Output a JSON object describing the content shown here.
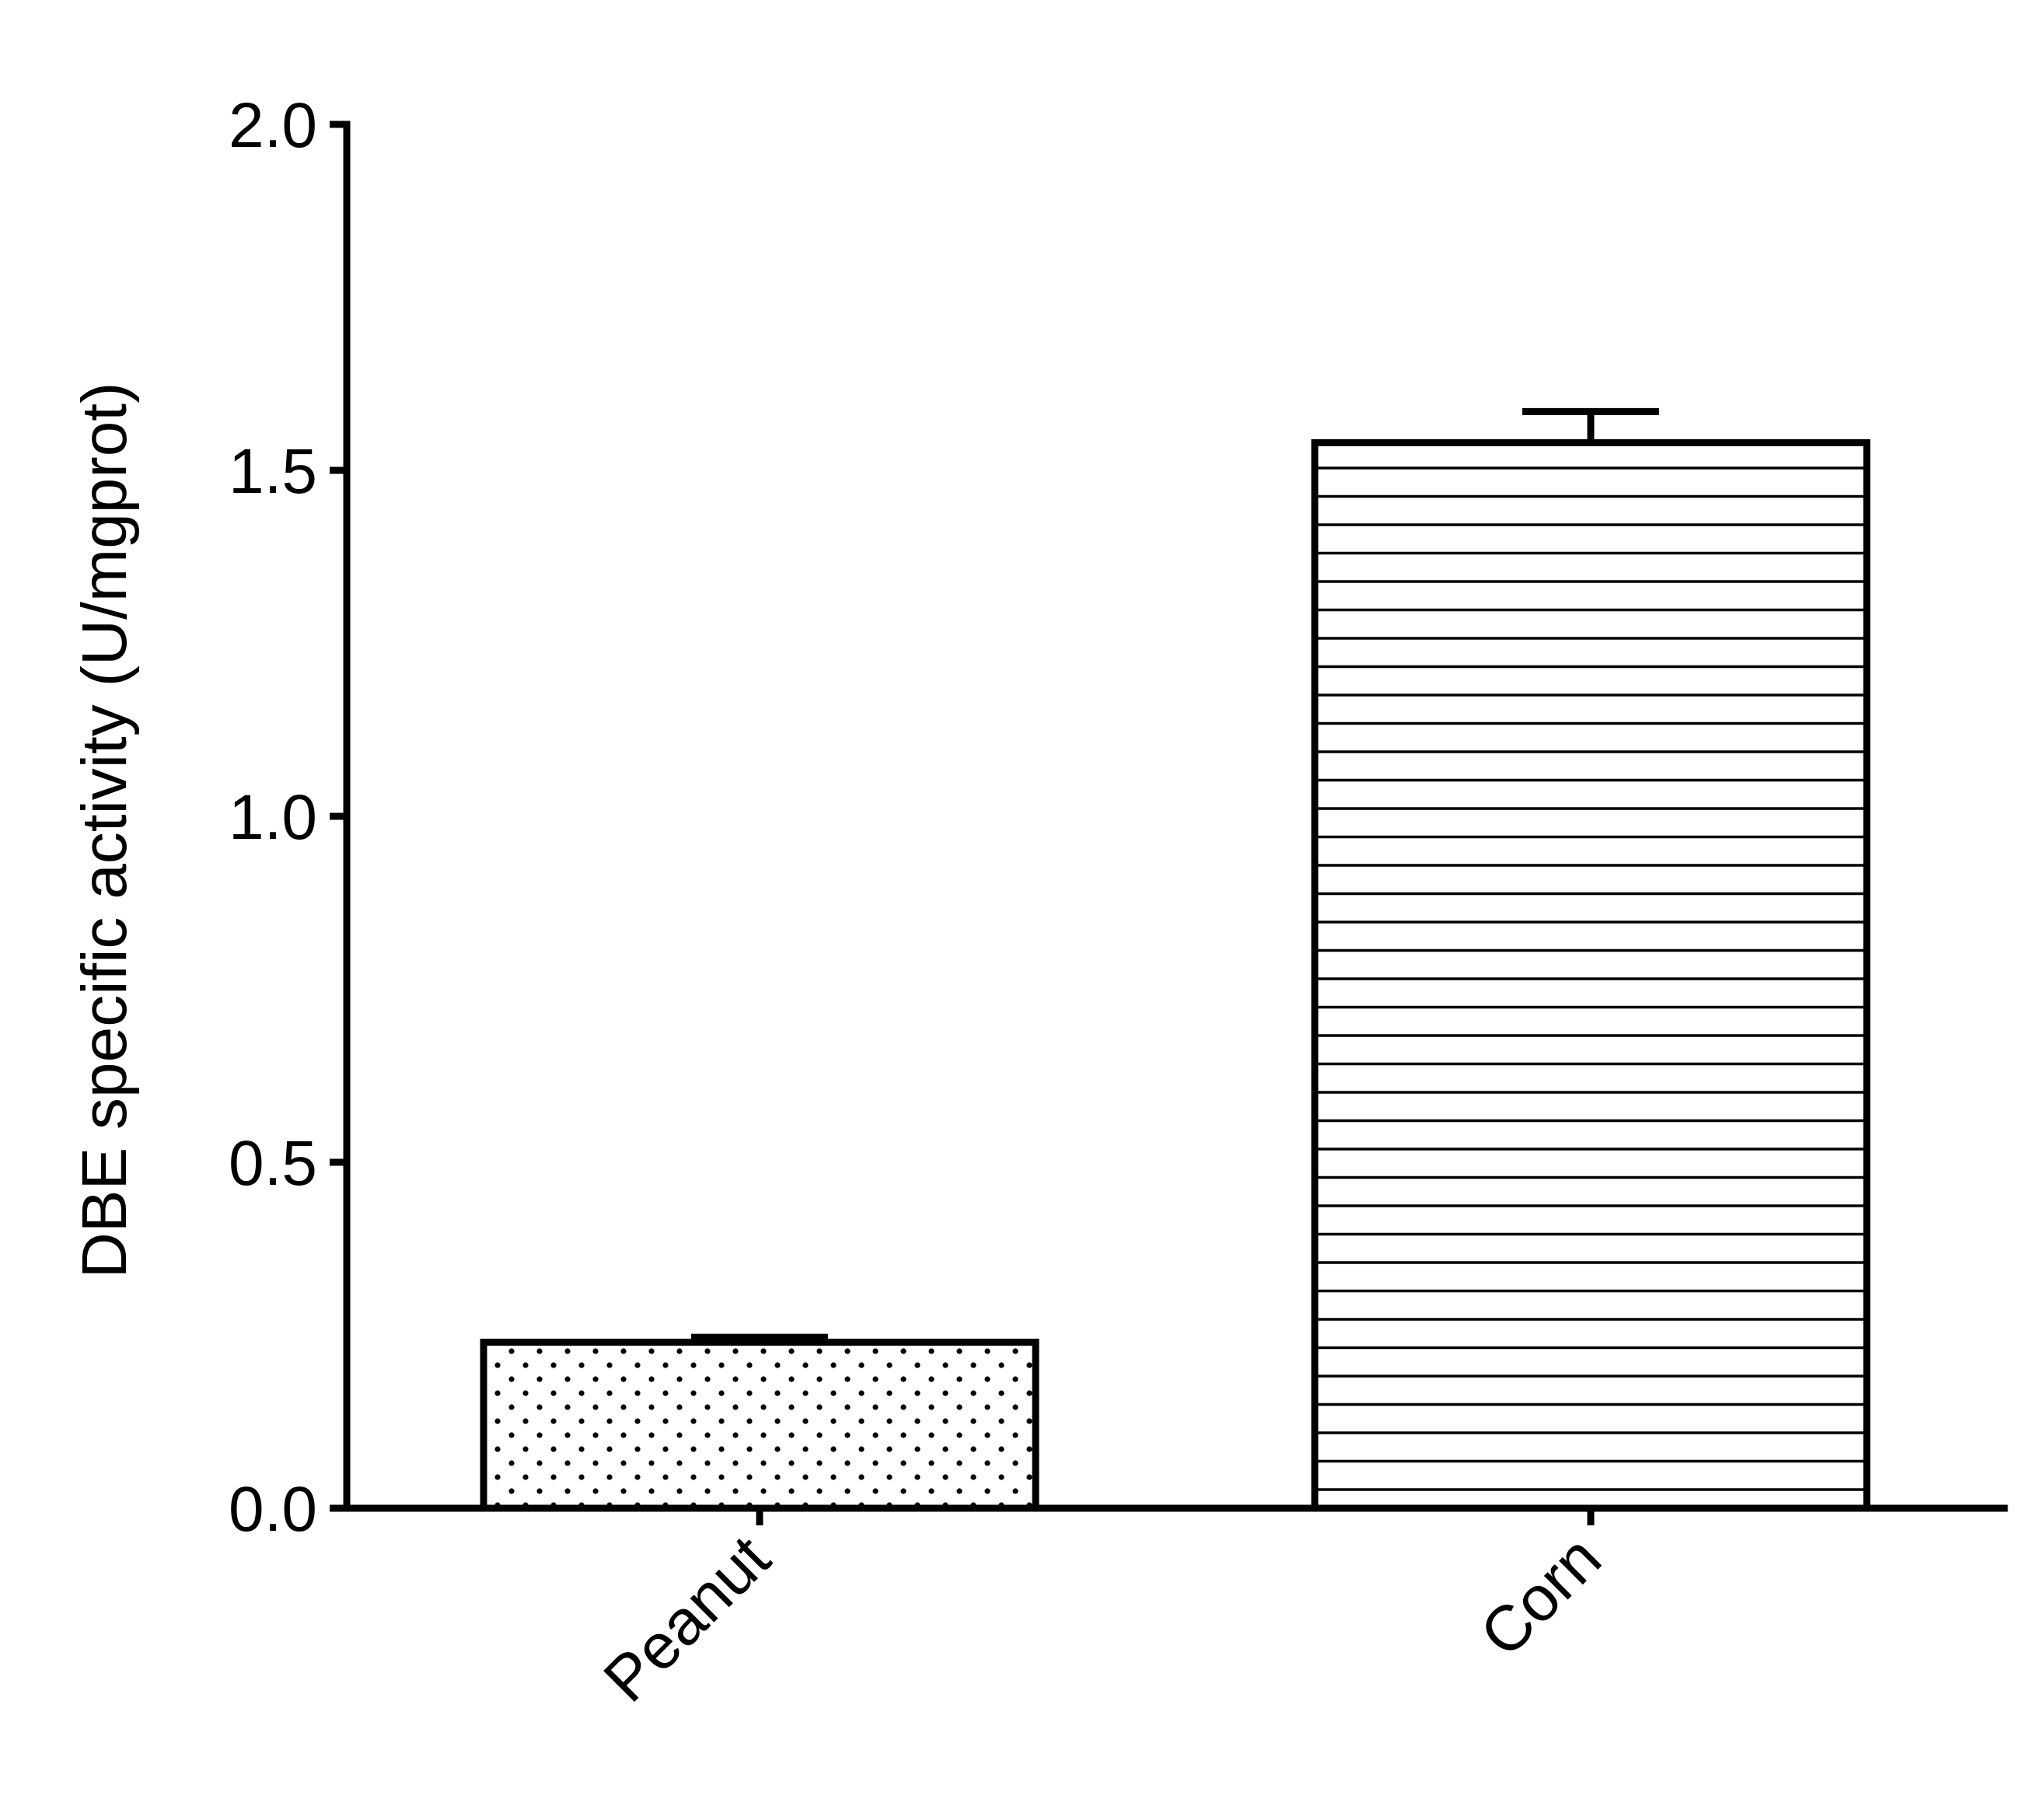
{
  "chart_data": {
    "type": "bar",
    "title": "",
    "xlabel": "",
    "ylabel": "DBE specific activity (U/mgprot)",
    "categories": [
      "Peanut",
      "Corn"
    ],
    "values": [
      0.24,
      1.54
    ],
    "error_bars": [
      0.007,
      0.045
    ],
    "ylim": [
      0,
      2.0
    ],
    "yticks": [
      0.0,
      0.5,
      1.0,
      1.5,
      2.0
    ],
    "ytick_labels": [
      "0.0",
      "0.5",
      "1.0",
      "1.5",
      "2.0"
    ],
    "bar_patterns": [
      "dots",
      "horizontal-lines"
    ],
    "grid": false,
    "legend": "none",
    "colors": {
      "ink": "#000000",
      "fill": "#ffffff"
    }
  }
}
